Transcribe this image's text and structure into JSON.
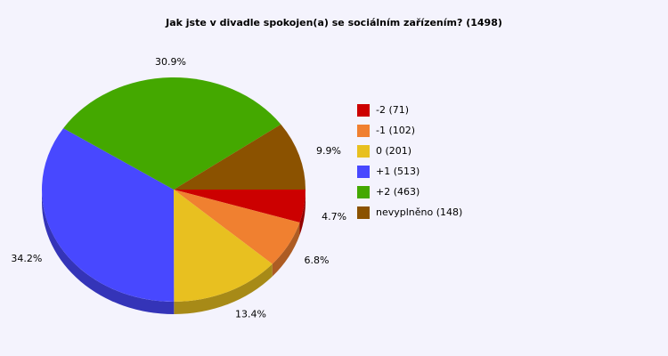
{
  "chart_data": {
    "type": "pie",
    "title": "Jak jste v divadle spokojen(a) se sociálním zařízením? (1498)",
    "slices": [
      {
        "label": "-2",
        "count": 71,
        "legend": "-2 (71)",
        "percent_label": "4.7%",
        "color": "#cc0000"
      },
      {
        "label": "-1",
        "count": 102,
        "legend": "-1 (102)",
        "percent_label": "6.8%",
        "color": "#f08030"
      },
      {
        "label": "0",
        "count": 201,
        "legend": "0 (201)",
        "percent_label": "13.4%",
        "color": "#e8c020"
      },
      {
        "label": "+1",
        "count": 513,
        "legend": "+1 (513)",
        "percent_label": "34.2%",
        "color": "#4848ff"
      },
      {
        "label": "+2",
        "count": 463,
        "legend": "+2 (463)",
        "percent_label": "30.9%",
        "color": "#44a800"
      },
      {
        "label": "nevyplněno",
        "count": 148,
        "legend": "nevyplněno (148)",
        "percent_label": "9.9%",
        "color": "#8b5200"
      }
    ],
    "legend_position": "right"
  }
}
